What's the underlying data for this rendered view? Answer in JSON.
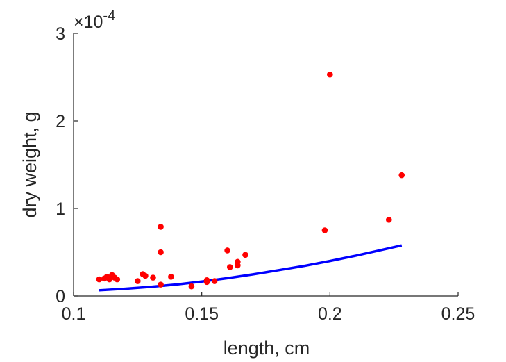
{
  "chart_data": {
    "type": "scatter",
    "title": "",
    "xlabel": "length, cm",
    "ylabel": "dry weight, g",
    "xlim": [
      0.1,
      0.25
    ],
    "ylim": [
      0,
      0.0003
    ],
    "xticks": [
      "0.1",
      "0.15",
      "0.2",
      "0.25"
    ],
    "yticks": [
      "0",
      "1",
      "2",
      "3"
    ],
    "y_exponent": {
      "base": "×10",
      "power": "-4"
    },
    "grid": false,
    "legend": "none",
    "series": [
      {
        "type": "scatter",
        "color": "#ff0000",
        "points": [
          [
            0.11,
            1.9e-05
          ],
          [
            0.112,
            2e-05
          ],
          [
            0.113,
            2.2e-05
          ],
          [
            0.114,
            1.9e-05
          ],
          [
            0.115,
            2.4e-05
          ],
          [
            0.116,
            2.1e-05
          ],
          [
            0.117,
            1.9e-05
          ],
          [
            0.125,
            1.7e-05
          ],
          [
            0.127,
            2.5e-05
          ],
          [
            0.128,
            2.3e-05
          ],
          [
            0.131,
            2.1e-05
          ],
          [
            0.134,
            7.9e-05
          ],
          [
            0.134,
            5e-05
          ],
          [
            0.134,
            1.3e-05
          ],
          [
            0.138,
            2.2e-05
          ],
          [
            0.146,
            1.1e-05
          ],
          [
            0.152,
            1.8e-05
          ],
          [
            0.152,
            1.6e-05
          ],
          [
            0.155,
            1.7e-05
          ],
          [
            0.16,
            5.2e-05
          ],
          [
            0.161,
            3.3e-05
          ],
          [
            0.164,
            3.9e-05
          ],
          [
            0.164,
            3.5e-05
          ],
          [
            0.167,
            4.7e-05
          ],
          [
            0.198,
            7.5e-05
          ],
          [
            0.2,
            0.000253
          ],
          [
            0.223,
            8.7e-05
          ],
          [
            0.228,
            0.000138
          ]
        ]
      },
      {
        "type": "line",
        "color": "#0000ff",
        "x": [
          0.11,
          0.12,
          0.13,
          0.14,
          0.15,
          0.16,
          0.17,
          0.18,
          0.19,
          0.2,
          0.21,
          0.22,
          0.228
        ],
        "y": [
          6.5e-06,
          8.2e-06,
          1.04e-05,
          1.31e-05,
          1.65e-05,
          2.03e-05,
          2.47e-05,
          2.95e-05,
          3.44e-05,
          4e-05,
          4.6e-05,
          5.25e-05,
          5.78e-05
        ]
      }
    ]
  }
}
